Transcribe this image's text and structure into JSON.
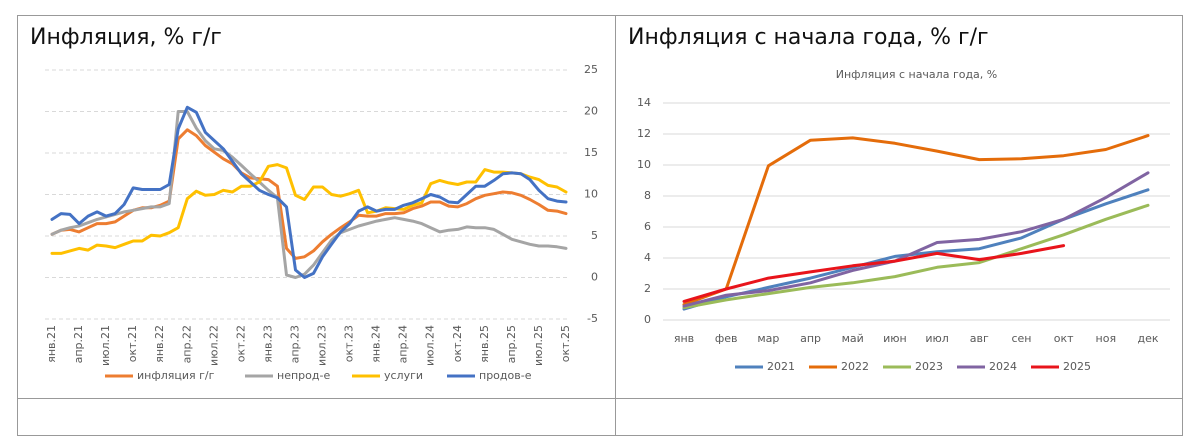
{
  "panels": [
    "Инфляция, % г/г",
    "Инфляция с начала года, % г/г"
  ],
  "chart_data": [
    {
      "type": "line",
      "legend": "bottom",
      "grid": true,
      "grid_style": "dashed",
      "y_axis_side": "right",
      "categories": [
        "янв.21",
        null,
        null,
        "апр.21",
        null,
        null,
        "июл.21",
        null,
        null,
        "окт.21",
        null,
        null,
        "янв.22",
        null,
        null,
        "апр.22",
        null,
        null,
        "июл.22",
        null,
        null,
        "окт.22",
        null,
        null,
        "янв.23",
        null,
        null,
        "апр.23",
        null,
        null,
        "июл.23",
        null,
        null,
        "окт.23",
        null,
        null,
        "янв.24",
        null,
        null,
        "апр.24",
        null,
        null,
        "июл.24",
        null,
        null,
        "окт.24",
        null,
        null,
        "янв.25",
        null,
        null,
        "апр.25",
        null,
        null,
        "июл.25",
        null,
        null,
        "окт.25"
      ],
      "ylim": [
        -5,
        25
      ],
      "yticks": [
        -5,
        0,
        5,
        10,
        15,
        20,
        25
      ],
      "series": [
        {
          "name": "инфляция г/г",
          "color": "#ed7d31",
          "values": [
            5.2,
            5.7,
            5.8,
            5.5,
            6.0,
            6.5,
            6.5,
            6.7,
            7.4,
            8.1,
            8.4,
            8.4,
            8.7,
            9.2,
            16.7,
            17.8,
            17.1,
            15.9,
            15.1,
            14.3,
            13.7,
            12.6,
            12.0,
            11.9,
            11.8,
            11.0,
            3.5,
            2.3,
            2.5,
            3.2,
            4.3,
            5.2,
            6.0,
            6.7,
            7.5,
            7.4,
            7.4,
            7.7,
            7.7,
            7.8,
            8.3,
            8.6,
            9.1,
            9.1,
            8.6,
            8.5,
            8.9,
            9.5,
            9.9,
            10.1,
            10.3,
            10.2,
            9.9,
            9.4,
            8.8,
            8.1,
            8.0,
            7.7
          ]
        },
        {
          "name": "непрод-е",
          "color": "#a5a5a5",
          "values": [
            5.2,
            5.7,
            6.0,
            6.2,
            6.6,
            7.0,
            7.3,
            7.6,
            7.9,
            8.1,
            8.3,
            8.5,
            8.5,
            8.9,
            20.0,
            20.0,
            18.0,
            16.5,
            15.5,
            15.3,
            14.5,
            13.5,
            12.5,
            11.5,
            10.5,
            9.6,
            0.3,
            0.0,
            0.4,
            1.5,
            3.0,
            4.5,
            5.4,
            5.8,
            6.2,
            6.5,
            6.8,
            7.0,
            7.2,
            7.0,
            6.8,
            6.5,
            6.0,
            5.5,
            5.7,
            5.8,
            6.1,
            6.0,
            6.0,
            5.8,
            5.2,
            4.6,
            4.3,
            4.0,
            3.8,
            3.8,
            3.7,
            3.5
          ]
        },
        {
          "name": "услуги",
          "color": "#ffc000",
          "values": [
            2.9,
            2.9,
            3.2,
            3.5,
            3.3,
            3.9,
            3.8,
            3.6,
            4.0,
            4.4,
            4.4,
            5.1,
            5.0,
            5.4,
            6.0,
            9.5,
            10.4,
            9.9,
            10.0,
            10.5,
            10.3,
            11.0,
            11.0,
            11.5,
            13.4,
            13.6,
            13.2,
            9.9,
            9.4,
            10.9,
            10.9,
            10.0,
            9.8,
            10.1,
            10.5,
            7.8,
            8.0,
            8.4,
            8.3,
            8.2,
            8.7,
            9.0,
            11.3,
            11.7,
            11.4,
            11.2,
            11.5,
            11.5,
            13.0,
            12.7,
            12.7,
            12.6,
            12.5,
            12.1,
            11.8,
            11.1,
            10.9,
            10.3
          ]
        },
        {
          "name": "продов-е",
          "color": "#4472c4",
          "values": [
            7.0,
            7.7,
            7.6,
            6.5,
            7.4,
            7.9,
            7.4,
            7.7,
            8.8,
            10.8,
            10.6,
            10.6,
            10.6,
            11.2,
            17.9,
            20.5,
            19.9,
            17.5,
            16.5,
            15.5,
            14.0,
            12.5,
            11.5,
            10.5,
            10.0,
            9.6,
            8.5,
            0.9,
            0.0,
            0.5,
            2.5,
            4.0,
            5.5,
            6.5,
            8.0,
            8.5,
            8.0,
            8.2,
            8.2,
            8.7,
            9.0,
            9.5,
            10.0,
            9.7,
            9.1,
            9.0,
            10.0,
            11.0,
            11.0,
            11.7,
            12.5,
            12.6,
            12.5,
            11.8,
            10.5,
            9.5,
            9.2,
            9.1
          ]
        }
      ]
    },
    {
      "type": "line",
      "title": "Инфляция с начала года, %",
      "legend": "bottom",
      "grid": true,
      "grid_style": "solid",
      "y_axis_side": "left",
      "categories": [
        "янв",
        "фев",
        "мар",
        "апр",
        "май",
        "июн",
        "июл",
        "авг",
        "сен",
        "окт",
        "ноя",
        "дек"
      ],
      "ylim": [
        0,
        14
      ],
      "yticks": [
        0,
        2,
        4,
        6,
        8,
        10,
        12,
        14
      ],
      "series": [
        {
          "name": "2021",
          "color": "#4f81bd",
          "values": [
            0.7,
            1.5,
            2.1,
            2.7,
            3.4,
            4.1,
            4.4,
            4.6,
            5.3,
            6.5,
            7.5,
            8.4
          ]
        },
        {
          "name": "2022",
          "color": "#e46c0a",
          "values": [
            1.0,
            2.0,
            9.95,
            11.6,
            11.75,
            11.4,
            10.9,
            10.35,
            10.4,
            10.6,
            11.0,
            11.9
          ]
        },
        {
          "name": "2023",
          "color": "#9bbb59",
          "values": [
            0.8,
            1.3,
            1.7,
            2.1,
            2.4,
            2.8,
            3.4,
            3.7,
            4.6,
            5.5,
            6.5,
            7.4
          ]
        },
        {
          "name": "2024",
          "color": "#8064a2",
          "values": [
            0.9,
            1.6,
            1.9,
            2.4,
            3.2,
            3.8,
            5.0,
            5.2,
            5.7,
            6.5,
            7.9,
            9.5
          ]
        },
        {
          "name": "2025",
          "color": "#e8141b",
          "values": [
            1.2,
            2.0,
            2.7,
            3.1,
            3.5,
            3.8,
            4.3,
            3.9,
            4.3,
            4.8,
            null,
            null
          ]
        }
      ]
    }
  ]
}
